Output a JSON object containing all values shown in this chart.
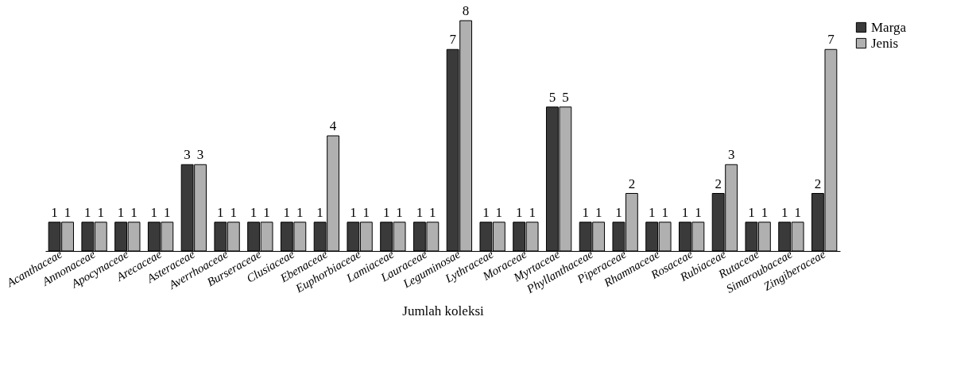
{
  "chart_data": {
    "type": "bar",
    "xlabel": "Jumlah koleksi",
    "data_labels": true,
    "legend": "right",
    "grid": false,
    "categories": [
      "Acanthaceae",
      "Annonaceae",
      "Apocynaceae",
      "Arecaceae",
      "Asteraceae",
      "Averrhoaceae",
      "Burseraceae",
      "Clusiaceae",
      "Ebenaceae",
      "Euphorbiaceae",
      "Lamiaceae",
      "Lauraceae",
      "Leguminosae",
      "Lythraceae",
      "Moraceae",
      "Myrtaceae",
      "Phyllanthaceae",
      "Piperaceae",
      "Rhamnaceae",
      "Rosaceae",
      "Rubiaceae",
      "Rutaceae",
      "Simaroubaceae",
      "Zingiberaceae"
    ],
    "series": [
      {
        "name": "Marga",
        "color": "#3a3a3a",
        "values": [
          1,
          1,
          1,
          1,
          3,
          1,
          1,
          1,
          1,
          1,
          1,
          1,
          7,
          1,
          1,
          5,
          1,
          1,
          1,
          1,
          2,
          1,
          1,
          2
        ]
      },
      {
        "name": "Jenis",
        "color": "#b0b0b0",
        "values": [
          1,
          1,
          1,
          1,
          3,
          1,
          1,
          1,
          4,
          1,
          1,
          1,
          8,
          1,
          1,
          5,
          1,
          2,
          1,
          1,
          3,
          1,
          1,
          7
        ]
      }
    ]
  }
}
